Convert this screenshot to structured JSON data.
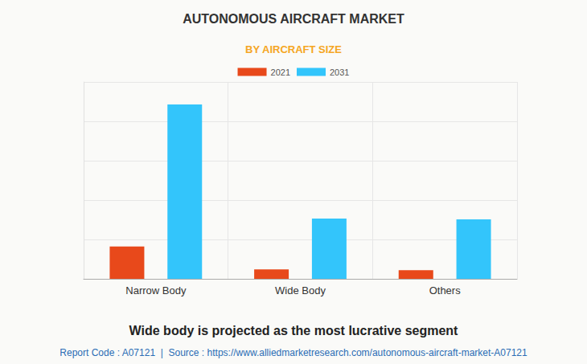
{
  "chart_data": {
    "type": "bar",
    "title": "AUTONOMOUS AIRCRAFT MARKET",
    "subtitle": "BY AIRCRAFT SIZE",
    "categories": [
      "Narrow Body",
      "Wide Body",
      "Others"
    ],
    "series": [
      {
        "name": "2021",
        "color": "#e8491b",
        "values": [
          0.82,
          0.24,
          0.22
        ]
      },
      {
        "name": "2031",
        "color": "#33c5fb",
        "values": [
          4.43,
          1.53,
          1.51
        ]
      }
    ],
    "ylim": [
      0,
      5
    ],
    "yticks": [
      0,
      1,
      2,
      3,
      4,
      5
    ],
    "grid": true,
    "legend": "top",
    "tick_labels": "x",
    "annotations": [
      "Wide body is projected as the most lucrative segment",
      "Report Code : A07121  |  Source : https://www.alliedmarketresearch.com/autonomous-aircraft-market-A07121"
    ]
  }
}
